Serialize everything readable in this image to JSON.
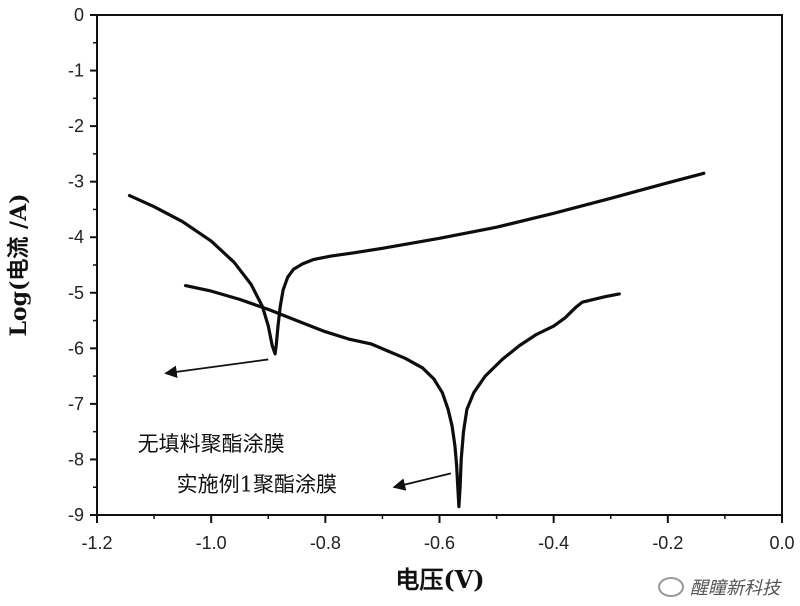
{
  "chart_data": {
    "type": "line",
    "xlabel": "电压(V)",
    "ylabel": "Log(电流 /A)",
    "xlim": [
      -1.2,
      0.0
    ],
    "ylim": [
      -9,
      0
    ],
    "x_ticks": [
      "-1.2",
      "-1.0",
      "-0.8",
      "-0.6",
      "-0.4",
      "-0.2",
      "0.0"
    ],
    "y_ticks": [
      "0",
      "-1",
      "-2",
      "-3",
      "-4",
      "-5",
      "-6",
      "-7",
      "-8",
      "-9"
    ],
    "grid": false,
    "series": [
      {
        "name": "无填料聚酯涂膜",
        "x": [
          -1.143,
          -1.1,
          -1.05,
          -1.0,
          -0.96,
          -0.93,
          -0.91,
          -0.9,
          -0.893,
          -0.888,
          -0.886,
          -0.883,
          -0.879,
          -0.874,
          -0.866,
          -0.856,
          -0.84,
          -0.82,
          -0.79,
          -0.75,
          -0.7,
          -0.6,
          -0.5,
          -0.4,
          -0.3,
          -0.2,
          -0.137
        ],
        "y": [
          -3.25,
          -3.45,
          -3.72,
          -4.07,
          -4.45,
          -4.85,
          -5.25,
          -5.6,
          -5.95,
          -6.1,
          -5.95,
          -5.6,
          -5.25,
          -4.95,
          -4.72,
          -4.58,
          -4.48,
          -4.4,
          -4.34,
          -4.28,
          -4.2,
          -4.02,
          -3.82,
          -3.57,
          -3.3,
          -3.02,
          -2.85
        ]
      },
      {
        "name": "实施例1聚酯涂膜",
        "x": [
          -1.045,
          -1.0,
          -0.95,
          -0.9,
          -0.85,
          -0.8,
          -0.76,
          -0.72,
          -0.69,
          -0.66,
          -0.63,
          -0.61,
          -0.595,
          -0.585,
          -0.578,
          -0.573,
          -0.57,
          -0.568,
          -0.566,
          -0.564,
          -0.562,
          -0.558,
          -0.552,
          -0.54,
          -0.52,
          -0.49,
          -0.46,
          -0.43,
          -0.4,
          -0.38,
          -0.37,
          -0.36,
          -0.35,
          -0.33,
          -0.31,
          -0.285
        ],
        "y": [
          -4.87,
          -4.97,
          -5.12,
          -5.3,
          -5.5,
          -5.7,
          -5.83,
          -5.92,
          -6.05,
          -6.18,
          -6.35,
          -6.55,
          -6.8,
          -7.1,
          -7.4,
          -7.75,
          -8.1,
          -8.5,
          -8.85,
          -8.5,
          -8.0,
          -7.5,
          -7.1,
          -6.8,
          -6.5,
          -6.2,
          -5.95,
          -5.75,
          -5.6,
          -5.45,
          -5.35,
          -5.25,
          -5.17,
          -5.12,
          -5.07,
          -5.02
        ]
      }
    ],
    "annotations": [
      {
        "text": "无填料聚酯涂膜",
        "x": -1.0,
        "y": -7.85,
        "arrow_from": [
          -0.9,
          -6.2
        ],
        "arrow_to": [
          -1.08,
          -6.45
        ]
      },
      {
        "text": "实施例1聚酯涂膜",
        "x": -0.92,
        "y": -8.58,
        "arrow_from": [
          -0.58,
          -8.25
        ],
        "arrow_to": [
          -0.68,
          -8.5
        ]
      }
    ]
  },
  "watermark": {
    "text": "醒瞳新科技",
    "icon": "wechat-icon"
  }
}
